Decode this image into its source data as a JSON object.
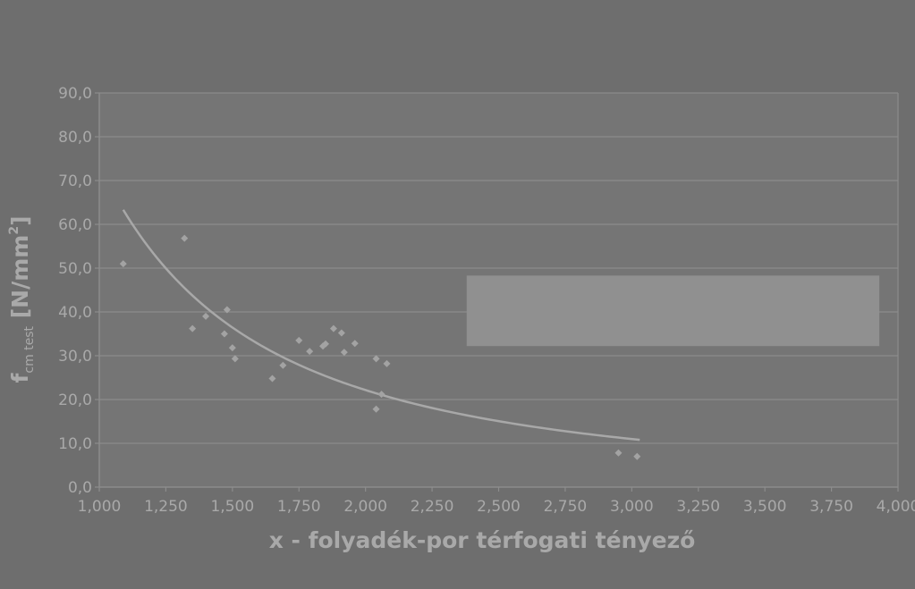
{
  "chart_data": {
    "type": "scatter",
    "title": "",
    "xlabel": "x - folyadék-por térfogati tényező",
    "ylabel": {
      "main": "f",
      "subscript": "cm test",
      "unit_open": " [N/mm",
      "unit_sup": "2",
      "unit_close": "]"
    },
    "xlim": [
      1.0,
      4.0
    ],
    "ylim": [
      0,
      90
    ],
    "x_ticks": [
      "1,000",
      "1,250",
      "1,500",
      "1,750",
      "2,000",
      "2,250",
      "2,500",
      "2,750",
      "3,000",
      "3,250",
      "3,500",
      "3,750",
      "4,000"
    ],
    "y_ticks": [
      "0,0",
      "10,0",
      "20,0",
      "30,0",
      "40,0",
      "50,0",
      "60,0",
      "70,0",
      "80,0",
      "90,0"
    ],
    "grid": true,
    "legend": "none",
    "colors": {
      "background": "#6e6e6e",
      "plot_area": "#757575",
      "grid": "#8c8c8c",
      "points": "#a3a3a3",
      "trendline": "#a8a8a8",
      "text": "#a9a9a9",
      "box": "#909090"
    },
    "series": [
      {
        "type": "scatter",
        "points": [
          [
            1.09,
            51.0
          ],
          [
            1.32,
            56.8
          ],
          [
            1.35,
            36.2
          ],
          [
            1.4,
            39.0
          ],
          [
            1.47,
            35.0
          ],
          [
            1.48,
            40.5
          ],
          [
            1.5,
            31.8
          ],
          [
            1.51,
            29.3
          ],
          [
            1.65,
            24.8
          ],
          [
            1.69,
            27.8
          ],
          [
            1.75,
            33.5
          ],
          [
            1.79,
            31.0
          ],
          [
            1.84,
            32.2
          ],
          [
            1.85,
            32.7
          ],
          [
            1.88,
            36.2
          ],
          [
            1.91,
            35.2
          ],
          [
            1.92,
            30.8
          ],
          [
            1.96,
            32.8
          ],
          [
            2.04,
            29.3
          ],
          [
            2.04,
            17.8
          ],
          [
            2.06,
            21.2
          ],
          [
            2.08,
            28.2
          ],
          [
            2.95,
            7.8
          ],
          [
            3.02,
            7.0
          ]
        ]
      },
      {
        "type": "trendline",
        "fit": "power",
        "coefficient": 73.5,
        "exponent": -1.73,
        "x_range": [
          1.09,
          3.03
        ]
      }
    ],
    "annotation_box": {
      "x_range": [
        2.38,
        3.93
      ],
      "y_range": [
        32.2,
        48.3
      ]
    }
  }
}
